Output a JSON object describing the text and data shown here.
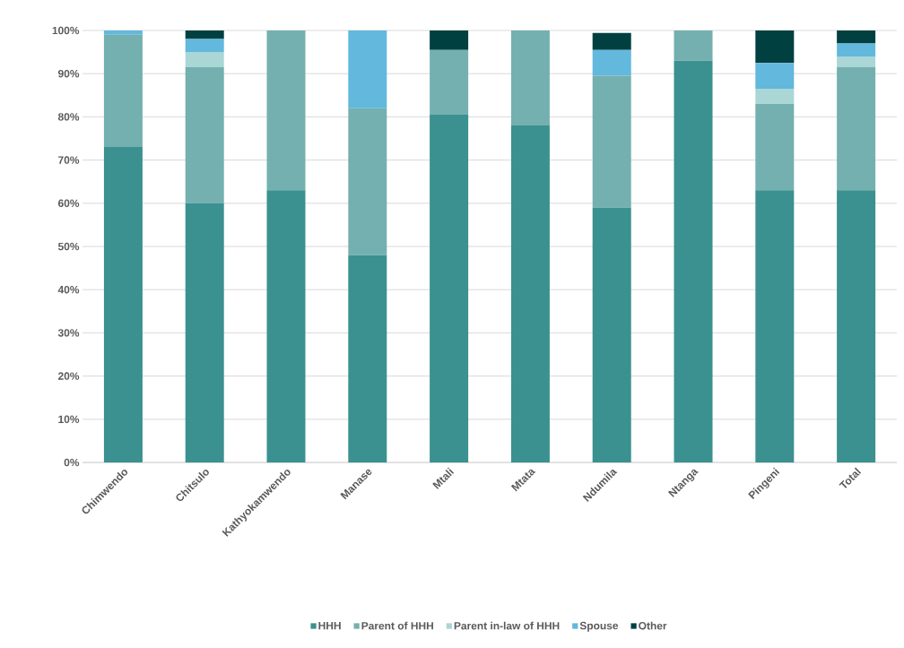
{
  "chart_data": {
    "type": "bar",
    "stacked": true,
    "categories": [
      "Chimwendo",
      "Chitsulo",
      "Kathyokamwendo",
      "Manase",
      "Mtali",
      "Mtata",
      "Ndumila",
      "Ntanga",
      "Pingeni",
      "Total"
    ],
    "series": [
      {
        "name": "HHH",
        "color": "#3a9190",
        "values": [
          73,
          60,
          63,
          48,
          80.5,
          78,
          59,
          93,
          63,
          63
        ]
      },
      {
        "name": "Parent of HHH",
        "color": "#74b0b0",
        "values": [
          26,
          31.5,
          37,
          34,
          15,
          22,
          30.5,
          7,
          20,
          28.5
        ]
      },
      {
        "name": "Parent in-law of HHH",
        "color": "#aad6d6",
        "values": [
          0,
          3.5,
          0,
          0,
          0,
          0,
          0,
          0,
          3.5,
          2.5
        ]
      },
      {
        "name": "Spouse",
        "color": "#62b8dd",
        "values": [
          1,
          3,
          0,
          18,
          0,
          0,
          6,
          0,
          6,
          3
        ]
      },
      {
        "name": "Other",
        "color": "#004040",
        "values": [
          0,
          2,
          0,
          0,
          4.5,
          0,
          3.9,
          0,
          7.5,
          3
        ]
      }
    ],
    "ylim": [
      0,
      100
    ],
    "yticks": [
      {
        "value": 0,
        "label": "0%"
      },
      {
        "value": 10,
        "label": "10%"
      },
      {
        "value": 20,
        "label": "20%"
      },
      {
        "value": 30,
        "label": "30%"
      },
      {
        "value": 40,
        "label": "40%"
      },
      {
        "value": 50,
        "label": "50%"
      },
      {
        "value": 60,
        "label": "60%"
      },
      {
        "value": 70,
        "label": "70%"
      },
      {
        "value": 80,
        "label": "80%"
      },
      {
        "value": 90,
        "label": "90%"
      },
      {
        "value": 100,
        "label": "100%"
      }
    ],
    "grid": "y",
    "legend": "bottom"
  }
}
